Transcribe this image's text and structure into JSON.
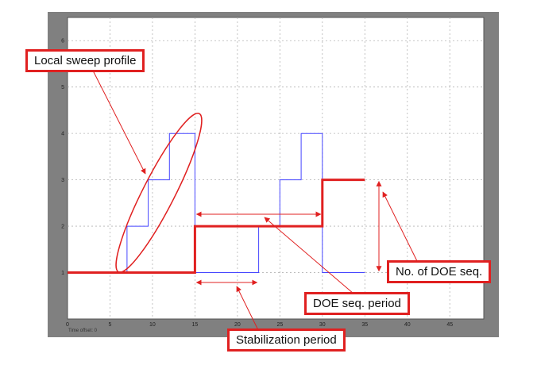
{
  "chart_data": {
    "type": "line",
    "xlabel": "",
    "ylabel": "",
    "xlim": [
      0,
      49
    ],
    "ylim": [
      0,
      6.5
    ],
    "x_ticks": [
      "0",
      "5",
      "10",
      "15",
      "20",
      "25",
      "30",
      "35",
      "40",
      "45"
    ],
    "x_tick_values": [
      0,
      5,
      10,
      15,
      20,
      25,
      30,
      35,
      40,
      45
    ],
    "y_ticks": [
      "1",
      "2",
      "3",
      "4",
      "5",
      "6"
    ],
    "y_tick_values": [
      1,
      2,
      3,
      4,
      5,
      6
    ],
    "grid": true,
    "series": [
      {
        "color": "#4646ff",
        "step_points": [
          [
            7,
            1
          ],
          [
            7,
            2
          ],
          [
            9.5,
            2
          ],
          [
            9.5,
            3
          ],
          [
            12,
            3
          ],
          [
            12,
            4
          ],
          [
            15,
            4
          ],
          [
            15,
            1
          ],
          [
            22.5,
            1
          ],
          [
            22.5,
            2
          ],
          [
            25,
            2
          ],
          [
            25,
            3
          ],
          [
            27.5,
            3
          ],
          [
            27.5,
            4
          ],
          [
            30,
            4
          ],
          [
            30,
            1
          ],
          [
            35,
            1
          ]
        ]
      },
      {
        "color": "#e02020",
        "step_points": [
          [
            0,
            1
          ],
          [
            15,
            1
          ],
          [
            15,
            2
          ],
          [
            30,
            2
          ],
          [
            30,
            3
          ],
          [
            35,
            3
          ]
        ]
      }
    ],
    "annotations": [
      {
        "text": "Local sweep profile"
      },
      {
        "text": "No. of DOE seq."
      },
      {
        "text": "DOE seq. period"
      },
      {
        "text": "Stabilization period"
      }
    ]
  },
  "status": {
    "time_offset": "Time offset:  0"
  },
  "colors": {
    "frame": "#808080",
    "plot_bg": "#ffffff",
    "grid": "#b4b4b4",
    "annotation": "#e02020"
  }
}
